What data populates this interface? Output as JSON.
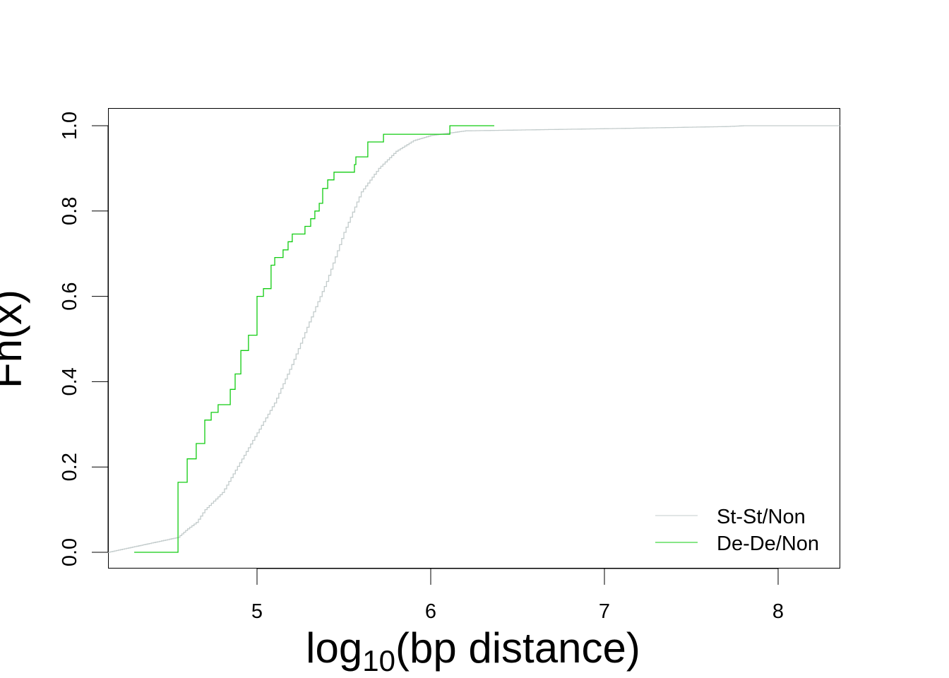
{
  "chart_data": {
    "type": "line",
    "subtype": "ecdf-step",
    "title": "",
    "xlabel_main": "log",
    "xlabel_sub": "10",
    "xlabel_rest": "(bp distance)",
    "ylabel": "Fn(x)",
    "xlim": [
      4.142,
      8.356
    ],
    "ylim": [
      0,
      1
    ],
    "xticks": [
      5,
      6,
      7,
      8
    ],
    "xtick_labels": [
      "5",
      "6",
      "7",
      "8"
    ],
    "yticks": [
      0,
      0.2,
      0.4,
      0.6,
      0.8,
      1.0
    ],
    "ytick_labels": [
      "0.0",
      "0.2",
      "0.4",
      "0.6",
      "0.8",
      "1.0"
    ],
    "grid": false,
    "legend_position": "bottom-right",
    "series": [
      {
        "name": "St-St/Non",
        "color": "#c3cccc",
        "points": [
          [
            4.142,
            0
          ],
          [
            4.545,
            0.035
          ],
          [
            4.6,
            0.055
          ],
          [
            4.65,
            0.07
          ],
          [
            4.7,
            0.1
          ],
          [
            4.8,
            0.14
          ],
          [
            4.9,
            0.21
          ],
          [
            5.0,
            0.28
          ],
          [
            5.1,
            0.35
          ],
          [
            5.2,
            0.44
          ],
          [
            5.3,
            0.54
          ],
          [
            5.4,
            0.635
          ],
          [
            5.5,
            0.75
          ],
          [
            5.6,
            0.845
          ],
          [
            5.7,
            0.9
          ],
          [
            5.8,
            0.94
          ],
          [
            5.9,
            0.965
          ],
          [
            6.0,
            0.977
          ],
          [
            6.2,
            0.988
          ],
          [
            7.0,
            0.993
          ],
          [
            7.7,
            0.998
          ],
          [
            7.8,
            1.0
          ],
          [
            8.356,
            1.0
          ]
        ]
      },
      {
        "name": "De-De/Non",
        "color": "#11cc11",
        "points": [
          [
            4.293,
            0
          ],
          [
            4.545,
            0.164
          ],
          [
            4.598,
            0.219
          ],
          [
            4.65,
            0.255
          ],
          [
            4.699,
            0.31
          ],
          [
            4.736,
            0.328
          ],
          [
            4.776,
            0.346
          ],
          [
            4.846,
            0.382
          ],
          [
            4.874,
            0.418
          ],
          [
            4.907,
            0.473
          ],
          [
            4.951,
            0.509
          ],
          [
            5.0,
            0.6
          ],
          [
            5.037,
            0.618
          ],
          [
            5.081,
            0.673
          ],
          [
            5.102,
            0.691
          ],
          [
            5.15,
            0.709
          ],
          [
            5.179,
            0.728
          ],
          [
            5.203,
            0.746
          ],
          [
            5.276,
            0.764
          ],
          [
            5.309,
            0.782
          ],
          [
            5.333,
            0.8
          ],
          [
            5.358,
            0.818
          ],
          [
            5.378,
            0.853
          ],
          [
            5.407,
            0.873
          ],
          [
            5.443,
            0.891
          ],
          [
            5.561,
            0.909
          ],
          [
            5.569,
            0.927
          ],
          [
            5.638,
            0.962
          ],
          [
            5.728,
            0.98
          ],
          [
            6.11,
            1.0
          ],
          [
            6.366,
            1.0
          ]
        ]
      }
    ]
  }
}
